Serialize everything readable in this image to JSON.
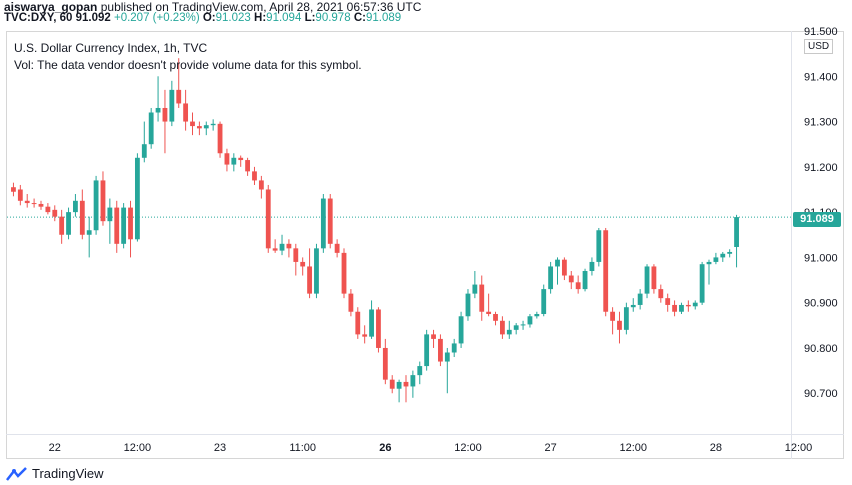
{
  "header": {
    "author": "aiswarya_gopan",
    "published": "published on TradingView.com, April 28, 2021 06:57:36 UTC",
    "symbol": "TVC:DXY, 60",
    "last": "91.092",
    "change": "+0.207 (+0.23%)",
    "o_label": "O:",
    "o": "91.023",
    "h_label": "H:",
    "h": "91.094",
    "l_label": "L:",
    "l": "90.978",
    "c_label": "C:",
    "c": "91.089"
  },
  "legend": {
    "title": "U.S. Dollar Currency Index, 1h, TVC",
    "volume_note": "Vol: The data vendor doesn't provide volume data for this symbol."
  },
  "price_axis": {
    "currency": "USD",
    "last_price": "91.089"
  },
  "branding": {
    "logo_text": "TradingView"
  },
  "colors": {
    "up": "#26a69a",
    "down": "#ef5350",
    "last_line": "#26a69a"
  },
  "chart_data": {
    "type": "candlestick",
    "ylim": [
      90.61,
      91.5
    ],
    "y_ticks": [
      "91.500",
      "91.400",
      "91.300",
      "91.200",
      "91.100",
      "91.000",
      "90.900",
      "90.800",
      "90.700"
    ],
    "y_tick_values": [
      91.5,
      91.4,
      91.3,
      91.2,
      91.1,
      91.0,
      90.9,
      90.8,
      90.7
    ],
    "x_ticks": [
      "22",
      "12:00",
      "23",
      "11:00",
      "26",
      "12:00",
      "27",
      "12:00",
      "28",
      "12:00"
    ],
    "x_tick_bold": [
      false,
      false,
      false,
      false,
      true,
      false,
      false,
      false,
      false,
      false
    ],
    "x_tick_index": [
      6,
      18,
      30,
      42,
      54,
      66,
      78,
      90,
      102,
      114
    ],
    "last_close": 91.089,
    "candles": [
      {
        "o": 91.155,
        "h": 91.165,
        "l": 91.135,
        "c": 91.145
      },
      {
        "o": 91.15,
        "h": 91.16,
        "l": 91.115,
        "c": 91.125
      },
      {
        "o": 91.125,
        "h": 91.14,
        "l": 91.11,
        "c": 91.12
      },
      {
        "o": 91.12,
        "h": 91.13,
        "l": 91.11,
        "c": 91.118
      },
      {
        "o": 91.118,
        "h": 91.125,
        "l": 91.105,
        "c": 91.112
      },
      {
        "o": 91.112,
        "h": 91.12,
        "l": 91.095,
        "c": 91.1
      },
      {
        "o": 91.105,
        "h": 91.115,
        "l": 91.08,
        "c": 91.09
      },
      {
        "o": 91.09,
        "h": 91.105,
        "l": 91.03,
        "c": 91.05
      },
      {
        "o": 91.05,
        "h": 91.11,
        "l": 91.04,
        "c": 91.1
      },
      {
        "o": 91.1,
        "h": 91.14,
        "l": 91.09,
        "c": 91.125
      },
      {
        "o": 91.125,
        "h": 91.15,
        "l": 91.04,
        "c": 91.05
      },
      {
        "o": 91.05,
        "h": 91.09,
        "l": 91.0,
        "c": 91.06
      },
      {
        "o": 91.06,
        "h": 91.18,
        "l": 91.05,
        "c": 91.17
      },
      {
        "o": 91.17,
        "h": 91.19,
        "l": 91.07,
        "c": 91.08
      },
      {
        "o": 91.08,
        "h": 91.13,
        "l": 91.03,
        "c": 91.11
      },
      {
        "o": 91.11,
        "h": 91.125,
        "l": 91.01,
        "c": 91.03
      },
      {
        "o": 91.03,
        "h": 91.12,
        "l": 91.02,
        "c": 91.11
      },
      {
        "o": 91.11,
        "h": 91.125,
        "l": 91.0,
        "c": 91.04
      },
      {
        "o": 91.04,
        "h": 91.23,
        "l": 91.035,
        "c": 91.22
      },
      {
        "o": 91.22,
        "h": 91.3,
        "l": 91.21,
        "c": 91.25
      },
      {
        "o": 91.25,
        "h": 91.33,
        "l": 91.24,
        "c": 91.32
      },
      {
        "o": 91.32,
        "h": 91.4,
        "l": 91.3,
        "c": 91.33
      },
      {
        "o": 91.33,
        "h": 91.37,
        "l": 91.23,
        "c": 91.3
      },
      {
        "o": 91.3,
        "h": 91.39,
        "l": 91.29,
        "c": 91.37
      },
      {
        "o": 91.37,
        "h": 91.44,
        "l": 91.33,
        "c": 91.34
      },
      {
        "o": 91.34,
        "h": 91.37,
        "l": 91.28,
        "c": 91.3
      },
      {
        "o": 91.3,
        "h": 91.32,
        "l": 91.27,
        "c": 91.29
      },
      {
        "o": 91.29,
        "h": 91.3,
        "l": 91.27,
        "c": 91.285
      },
      {
        "o": 91.285,
        "h": 91.3,
        "l": 91.27,
        "c": 91.292
      },
      {
        "o": 91.292,
        "h": 91.305,
        "l": 91.28,
        "c": 91.295
      },
      {
        "o": 91.295,
        "h": 91.3,
        "l": 91.22,
        "c": 91.23
      },
      {
        "o": 91.23,
        "h": 91.24,
        "l": 91.19,
        "c": 91.205
      },
      {
        "o": 91.205,
        "h": 91.23,
        "l": 91.19,
        "c": 91.22
      },
      {
        "o": 91.22,
        "h": 91.225,
        "l": 91.2,
        "c": 91.215
      },
      {
        "o": 91.215,
        "h": 91.22,
        "l": 91.18,
        "c": 91.19
      },
      {
        "o": 91.19,
        "h": 91.2,
        "l": 91.16,
        "c": 91.17
      },
      {
        "o": 91.17,
        "h": 91.18,
        "l": 91.13,
        "c": 91.15
      },
      {
        "o": 91.15,
        "h": 91.16,
        "l": 91.01,
        "c": 91.02
      },
      {
        "o": 91.02,
        "h": 91.04,
        "l": 91.01,
        "c": 91.015
      },
      {
        "o": 91.015,
        "h": 91.05,
        "l": 91.005,
        "c": 91.03
      },
      {
        "o": 91.03,
        "h": 91.04,
        "l": 91.0,
        "c": 91.02
      },
      {
        "o": 91.02,
        "h": 91.03,
        "l": 90.96,
        "c": 90.99
      },
      {
        "o": 90.99,
        "h": 91.0,
        "l": 90.96,
        "c": 90.98
      },
      {
        "o": 90.98,
        "h": 91.02,
        "l": 90.91,
        "c": 90.92
      },
      {
        "o": 90.92,
        "h": 91.03,
        "l": 90.91,
        "c": 91.02
      },
      {
        "o": 91.02,
        "h": 91.14,
        "l": 91.01,
        "c": 91.13
      },
      {
        "o": 91.13,
        "h": 91.14,
        "l": 91.02,
        "c": 91.03
      },
      {
        "o": 91.03,
        "h": 91.04,
        "l": 91.0,
        "c": 91.01
      },
      {
        "o": 91.01,
        "h": 91.02,
        "l": 90.91,
        "c": 90.92
      },
      {
        "o": 90.92,
        "h": 90.93,
        "l": 90.87,
        "c": 90.88
      },
      {
        "o": 90.88,
        "h": 90.89,
        "l": 90.82,
        "c": 90.83
      },
      {
        "o": 90.83,
        "h": 90.85,
        "l": 90.81,
        "c": 90.825
      },
      {
        "o": 90.825,
        "h": 90.905,
        "l": 90.82,
        "c": 90.885
      },
      {
        "o": 90.885,
        "h": 90.89,
        "l": 90.79,
        "c": 90.8
      },
      {
        "o": 90.8,
        "h": 90.82,
        "l": 90.72,
        "c": 90.73
      },
      {
        "o": 90.73,
        "h": 90.74,
        "l": 90.7,
        "c": 90.71
      },
      {
        "o": 90.71,
        "h": 90.73,
        "l": 90.68,
        "c": 90.725
      },
      {
        "o": 90.725,
        "h": 90.74,
        "l": 90.68,
        "c": 90.715
      },
      {
        "o": 90.715,
        "h": 90.75,
        "l": 90.69,
        "c": 90.74
      },
      {
        "o": 90.74,
        "h": 90.77,
        "l": 90.72,
        "c": 90.76
      },
      {
        "o": 90.76,
        "h": 90.84,
        "l": 90.75,
        "c": 90.83
      },
      {
        "o": 90.83,
        "h": 90.84,
        "l": 90.8,
        "c": 90.82
      },
      {
        "o": 90.82,
        "h": 90.83,
        "l": 90.76,
        "c": 90.77
      },
      {
        "o": 90.77,
        "h": 90.8,
        "l": 90.7,
        "c": 90.79
      },
      {
        "o": 90.79,
        "h": 90.82,
        "l": 90.78,
        "c": 90.81
      },
      {
        "o": 90.81,
        "h": 90.88,
        "l": 90.8,
        "c": 90.87
      },
      {
        "o": 90.87,
        "h": 90.93,
        "l": 90.86,
        "c": 90.92
      },
      {
        "o": 90.92,
        "h": 90.97,
        "l": 90.91,
        "c": 90.94
      },
      {
        "o": 90.94,
        "h": 90.96,
        "l": 90.86,
        "c": 90.88
      },
      {
        "o": 90.88,
        "h": 90.92,
        "l": 90.87,
        "c": 90.875
      },
      {
        "o": 90.875,
        "h": 90.88,
        "l": 90.85,
        "c": 90.86
      },
      {
        "o": 90.86,
        "h": 90.87,
        "l": 90.82,
        "c": 90.83
      },
      {
        "o": 90.83,
        "h": 90.86,
        "l": 90.82,
        "c": 90.84
      },
      {
        "o": 90.84,
        "h": 90.855,
        "l": 90.83,
        "c": 90.85
      },
      {
        "o": 90.85,
        "h": 90.86,
        "l": 90.84,
        "c": 90.852
      },
      {
        "o": 90.852,
        "h": 90.875,
        "l": 90.845,
        "c": 90.87
      },
      {
        "o": 90.87,
        "h": 90.88,
        "l": 90.865,
        "c": 90.875
      },
      {
        "o": 90.875,
        "h": 90.94,
        "l": 90.87,
        "c": 90.93
      },
      {
        "o": 90.93,
        "h": 90.99,
        "l": 90.92,
        "c": 90.98
      },
      {
        "o": 90.98,
        "h": 91.0,
        "l": 90.94,
        "c": 90.995
      },
      {
        "o": 90.995,
        "h": 91.0,
        "l": 90.95,
        "c": 90.96
      },
      {
        "o": 90.96,
        "h": 90.97,
        "l": 90.93,
        "c": 90.945
      },
      {
        "o": 90.945,
        "h": 90.96,
        "l": 90.92,
        "c": 90.93
      },
      {
        "o": 90.93,
        "h": 90.975,
        "l": 90.925,
        "c": 90.97
      },
      {
        "o": 90.97,
        "h": 91.0,
        "l": 90.96,
        "c": 90.99
      },
      {
        "o": 90.99,
        "h": 91.065,
        "l": 90.98,
        "c": 91.06
      },
      {
        "o": 91.06,
        "h": 91.065,
        "l": 90.87,
        "c": 90.88
      },
      {
        "o": 90.88,
        "h": 90.89,
        "l": 90.83,
        "c": 90.86
      },
      {
        "o": 90.86,
        "h": 90.88,
        "l": 90.81,
        "c": 90.84
      },
      {
        "o": 90.84,
        "h": 90.9,
        "l": 90.83,
        "c": 90.89
      },
      {
        "o": 90.89,
        "h": 90.91,
        "l": 90.88,
        "c": 90.895
      },
      {
        "o": 90.895,
        "h": 90.93,
        "l": 90.885,
        "c": 90.92
      },
      {
        "o": 90.92,
        "h": 90.985,
        "l": 90.91,
        "c": 90.98
      },
      {
        "o": 90.98,
        "h": 90.985,
        "l": 90.92,
        "c": 90.93
      },
      {
        "o": 90.93,
        "h": 90.94,
        "l": 90.9,
        "c": 90.91
      },
      {
        "o": 90.91,
        "h": 90.92,
        "l": 90.88,
        "c": 90.895
      },
      {
        "o": 90.895,
        "h": 90.905,
        "l": 90.87,
        "c": 90.88
      },
      {
        "o": 90.88,
        "h": 90.9,
        "l": 90.875,
        "c": 90.895
      },
      {
        "o": 90.895,
        "h": 90.905,
        "l": 90.88,
        "c": 90.892
      },
      {
        "o": 90.892,
        "h": 90.905,
        "l": 90.885,
        "c": 90.9
      },
      {
        "o": 90.9,
        "h": 90.99,
        "l": 90.895,
        "c": 90.985
      },
      {
        "o": 90.985,
        "h": 90.995,
        "l": 90.94,
        "c": 90.99
      },
      {
        "o": 90.99,
        "h": 91.01,
        "l": 90.985,
        "c": 91.0
      },
      {
        "o": 91.0,
        "h": 91.012,
        "l": 90.99,
        "c": 91.008
      },
      {
        "o": 91.008,
        "h": 91.018,
        "l": 91.0,
        "c": 91.012
      },
      {
        "o": 91.023,
        "h": 91.094,
        "l": 90.978,
        "c": 91.089
      }
    ]
  }
}
